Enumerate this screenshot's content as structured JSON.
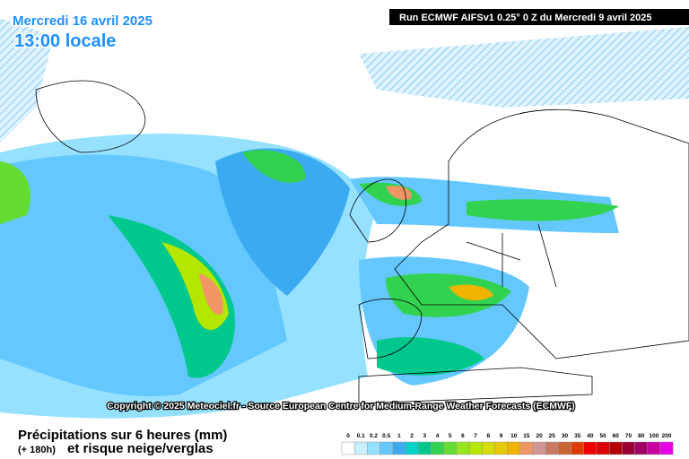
{
  "header": {
    "date": "Mercredi 16 avril 2025",
    "time": "13:00 locale",
    "run": "Run ECMWF AIFSv1 0.25° 0 Z du Mercredi 9 avril 2025"
  },
  "copyright": "Copyright © 2025 Meteociel.fr - Source European Centre for Medium-Range Weather Forecasts (ECMWF)",
  "footer": {
    "title": "Précipitations sur 6 heures (mm)",
    "lead": "(+ 180h)",
    "subtitle": "et risque neige/verglas"
  },
  "scale": {
    "labels": [
      "0",
      "0.1",
      "0.2",
      "0.5",
      "1",
      "2",
      "3",
      "4",
      "5",
      "6",
      "7",
      "8",
      "9",
      "10",
      "15",
      "20",
      "25",
      "30",
      "35",
      "40",
      "50",
      "60",
      "70",
      "80",
      "100",
      "200"
    ],
    "colors": [
      "#ffffff",
      "#c8f0ff",
      "#96e1ff",
      "#64c8ff",
      "#3caaf0",
      "#00d2c8",
      "#00c88c",
      "#32d250",
      "#64dc32",
      "#96e61e",
      "#b4e600",
      "#d2dc00",
      "#e6c800",
      "#f0b400",
      "#f09664",
      "#d29696",
      "#c87864",
      "#c86432",
      "#dc3c00",
      "#f00000",
      "#dc0000",
      "#b40000",
      "#960032",
      "#a00064",
      "#c800a0",
      "#e600e6"
    ]
  }
}
